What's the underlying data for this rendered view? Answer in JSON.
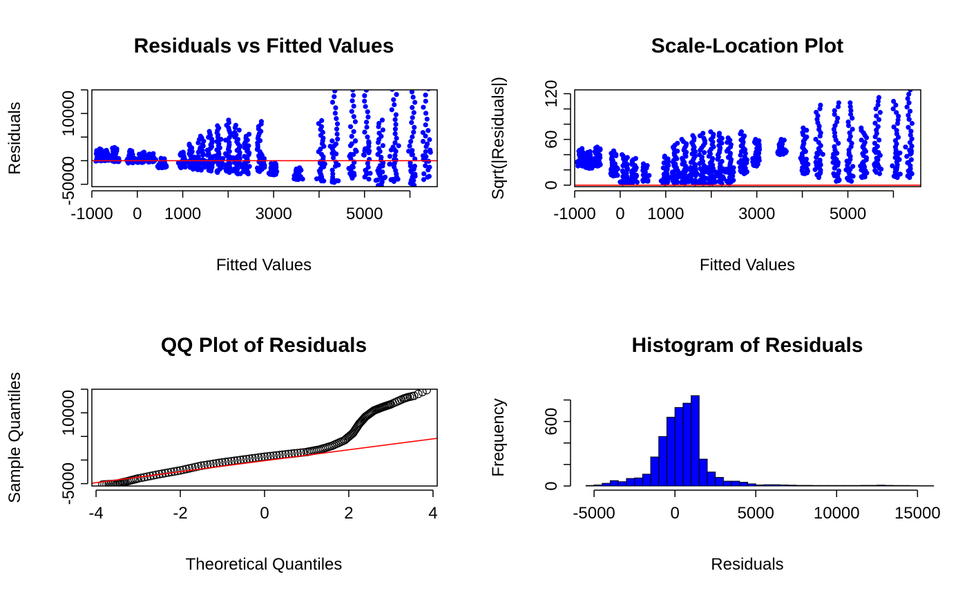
{
  "chart_data": [
    {
      "id": "resid-fitted",
      "type": "scatter",
      "title": "Residuals vs Fitted Values",
      "xlabel": "Fitted Values",
      "ylabel": "Residuals",
      "xlim": [
        -1000,
        6600
      ],
      "ylim": [
        -5500,
        15000
      ],
      "xticks": [
        "-1000",
        "0",
        "1000",
        "3000",
        "5000"
      ],
      "xtick_values": [
        -1000,
        0,
        1000,
        3000,
        5000
      ],
      "xminor_ticks": [
        2000,
        4000,
        6000
      ],
      "yticks": [
        "-5000",
        "0",
        "10000"
      ],
      "ytick_values": [
        -5000,
        0,
        10000
      ],
      "yminor_ticks": [
        5000,
        15000
      ],
      "point_color": "#0000FF",
      "reference_line": {
        "type": "hline",
        "value": 0,
        "color": "#FF0000"
      },
      "columns": [
        {
          "x": -850,
          "min": -100,
          "max": 2500
        },
        {
          "x": -700,
          "min": 0,
          "max": 2200
        },
        {
          "x": -500,
          "min": -200,
          "max": 2800
        },
        {
          "x": -150,
          "min": -500,
          "max": 2200
        },
        {
          "x": 100,
          "min": -400,
          "max": 1800
        },
        {
          "x": 300,
          "min": -300,
          "max": 1500
        },
        {
          "x": 550,
          "min": -1500,
          "max": 500
        },
        {
          "x": 1000,
          "min": -1500,
          "max": 1800
        },
        {
          "x": 1200,
          "min": -1800,
          "max": 3500
        },
        {
          "x": 1400,
          "min": -2000,
          "max": 5200
        },
        {
          "x": 1600,
          "min": -2200,
          "max": 6200
        },
        {
          "x": 1800,
          "min": -2500,
          "max": 7400
        },
        {
          "x": 2000,
          "min": -2500,
          "max": 8600
        },
        {
          "x": 2200,
          "min": -2800,
          "max": 7500
        },
        {
          "x": 2400,
          "min": -2800,
          "max": 5600
        },
        {
          "x": 2700,
          "min": -2300,
          "max": 8300
        },
        {
          "x": 3000,
          "min": -3000,
          "max": -500
        },
        {
          "x": 3550,
          "min": -4000,
          "max": -1500
        },
        {
          "x": 4050,
          "min": -4300,
          "max": 8500
        },
        {
          "x": 4350,
          "min": -4600,
          "max": 21000
        },
        {
          "x": 4750,
          "min": -3700,
          "max": 21000
        },
        {
          "x": 5050,
          "min": -3900,
          "max": 21000
        },
        {
          "x": 5350,
          "min": -5500,
          "max": 8600
        },
        {
          "x": 5650,
          "min": -4400,
          "max": 18500
        },
        {
          "x": 6050,
          "min": -5200,
          "max": 18000
        },
        {
          "x": 6350,
          "min": -4000,
          "max": 25000
        }
      ]
    },
    {
      "id": "scale-location",
      "type": "scatter",
      "title": "Scale-Location Plot",
      "xlabel": "Fitted Values",
      "ylabel": "Sqrt(|Residuals|)",
      "xlim": [
        -1000,
        6600
      ],
      "ylim": [
        -2,
        125
      ],
      "xticks": [
        "-1000",
        "0",
        "1000",
        "3000",
        "5000"
      ],
      "xtick_values": [
        -1000,
        0,
        1000,
        3000,
        5000
      ],
      "xminor_ticks": [
        2000,
        4000,
        6000
      ],
      "yticks": [
        "0",
        "60",
        "120"
      ],
      "ytick_values": [
        0,
        60,
        120
      ],
      "yminor_ticks": [
        20,
        40,
        80,
        100
      ],
      "point_color": "#0000FF",
      "reference_line": {
        "type": "hline",
        "value": 0,
        "color": "#FF0000"
      },
      "columns": [
        {
          "x": -850,
          "min": 25,
          "max": 48
        },
        {
          "x": -700,
          "min": 22,
          "max": 44
        },
        {
          "x": -500,
          "min": 25,
          "max": 50
        },
        {
          "x": -150,
          "min": 12,
          "max": 45
        },
        {
          "x": 100,
          "min": 2,
          "max": 40
        },
        {
          "x": 300,
          "min": 3,
          "max": 35
        },
        {
          "x": 550,
          "min": 5,
          "max": 28
        },
        {
          "x": 1000,
          "min": 2,
          "max": 38
        },
        {
          "x": 1200,
          "min": 2,
          "max": 55
        },
        {
          "x": 1400,
          "min": 2,
          "max": 60
        },
        {
          "x": 1600,
          "min": 2,
          "max": 65
        },
        {
          "x": 1800,
          "min": 2,
          "max": 68
        },
        {
          "x": 2000,
          "min": 2,
          "max": 70
        },
        {
          "x": 2200,
          "min": 2,
          "max": 68
        },
        {
          "x": 2400,
          "min": 2,
          "max": 62
        },
        {
          "x": 2700,
          "min": 15,
          "max": 70
        },
        {
          "x": 3000,
          "min": 25,
          "max": 60
        },
        {
          "x": 3550,
          "min": 40,
          "max": 60
        },
        {
          "x": 4050,
          "min": 15,
          "max": 75
        },
        {
          "x": 4350,
          "min": 10,
          "max": 105
        },
        {
          "x": 4750,
          "min": 5,
          "max": 108
        },
        {
          "x": 5050,
          "min": 5,
          "max": 108
        },
        {
          "x": 5350,
          "min": 10,
          "max": 75
        },
        {
          "x": 5650,
          "min": 15,
          "max": 115
        },
        {
          "x": 6050,
          "min": 10,
          "max": 110
        },
        {
          "x": 6350,
          "min": 10,
          "max": 125
        }
      ]
    },
    {
      "id": "qq-plot",
      "type": "scatter",
      "title": "QQ Plot of Residuals",
      "xlabel": "Theoretical Quantiles",
      "ylabel": "Sample Quantiles",
      "xlim": [
        -4.1,
        4.1
      ],
      "ylim": [
        -5500,
        15000
      ],
      "xticks": [
        "-4",
        "-2",
        "0",
        "2",
        "4"
      ],
      "xtick_values": [
        -4,
        -2,
        0,
        2,
        4
      ],
      "xminor_ticks": [],
      "yticks": [
        "-5000",
        "10000"
      ],
      "ytick_values": [
        -5000,
        10000
      ],
      "yminor_ticks": [
        0,
        5000,
        15000
      ],
      "point_color": "#000000",
      "reference_line": {
        "type": "abline",
        "x1": -4.1,
        "y1": -4900,
        "x2": 4.1,
        "y2": 4600,
        "color": "#FF0000"
      },
      "curve": [
        [
          -3.85,
          -5200
        ],
        [
          -3.5,
          -5000
        ],
        [
          -3.3,
          -4600
        ],
        [
          -3.0,
          -3900
        ],
        [
          -2.5,
          -3000
        ],
        [
          -2.0,
          -2200
        ],
        [
          -1.5,
          -1200
        ],
        [
          -1.0,
          -500
        ],
        [
          -0.5,
          100
        ],
        [
          0.0,
          700
        ],
        [
          0.5,
          1200
        ],
        [
          1.0,
          1700
        ],
        [
          1.3,
          2200
        ],
        [
          1.6,
          3000
        ],
        [
          1.9,
          4200
        ],
        [
          2.1,
          5700
        ],
        [
          2.25,
          7700
        ],
        [
          2.4,
          9200
        ],
        [
          2.6,
          10500
        ],
        [
          2.8,
          11200
        ],
        [
          3.0,
          11800
        ],
        [
          3.15,
          12400
        ],
        [
          3.3,
          13000
        ],
        [
          3.4,
          13300
        ],
        [
          3.55,
          13600
        ],
        [
          3.85,
          14800
        ]
      ]
    },
    {
      "id": "histogram",
      "type": "bar",
      "title": "Histogram of Residuals",
      "xlabel": "Residuals",
      "ylabel": "Frequency",
      "xlim": [
        -6200,
        15200
      ],
      "ylim": [
        0,
        900
      ],
      "xticks": [
        "-5000",
        "0",
        "5000",
        "10000",
        "15000"
      ],
      "xtick_values": [
        -5000,
        0,
        5000,
        10000,
        15000
      ],
      "xminor_ticks": [],
      "yticks": [
        "0",
        "600"
      ],
      "ytick_values": [
        0,
        600
      ],
      "yminor_ticks": [
        200,
        400,
        800
      ],
      "bar_color": "#0000FF",
      "bin_width": 500,
      "bin_start": -5500,
      "values": [
        5,
        10,
        25,
        50,
        40,
        70,
        75,
        110,
        270,
        460,
        640,
        730,
        770,
        840,
        250,
        130,
        80,
        45,
        45,
        35,
        20,
        10,
        12,
        12,
        10,
        8,
        6,
        6,
        5,
        5,
        5,
        5,
        5,
        5,
        6,
        6,
        8,
        6,
        5,
        5,
        4,
        3,
        3
      ]
    }
  ]
}
